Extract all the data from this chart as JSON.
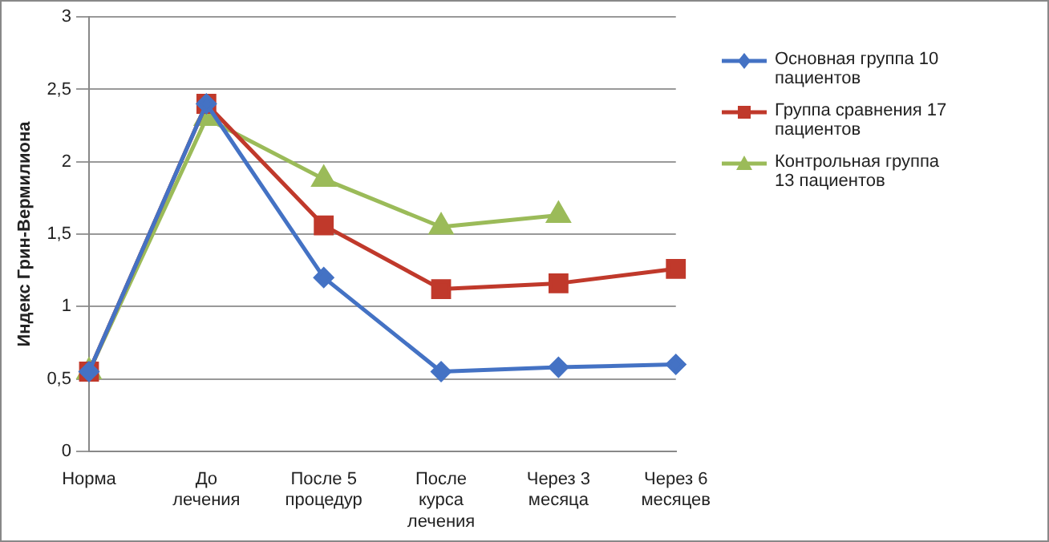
{
  "chart_data": {
    "type": "line",
    "ylabel": "Индекс Грин-Вермилиона",
    "categories": [
      "Норма",
      "До лечения",
      "После 5 процедур",
      "После курса лечения",
      "Через 3 месяца",
      "Через 6 месяцев"
    ],
    "series": [
      {
        "name": "Основная группа 10 пациентов",
        "color": "#4472c4",
        "marker": "diamond",
        "values": [
          0.55,
          2.4,
          1.2,
          0.55,
          0.58,
          0.6
        ]
      },
      {
        "name": "Группа сравнения 17 пациентов",
        "color": "#c0392b",
        "marker": "square",
        "values": [
          0.55,
          2.4,
          1.56,
          1.12,
          1.16,
          1.26
        ]
      },
      {
        "name": "Контрольная группа 13 пациентов",
        "color": "#9bbb59",
        "marker": "triangle",
        "values": [
          0.55,
          2.3,
          1.88,
          1.55,
          1.63,
          null
        ]
      }
    ],
    "ylim": [
      0,
      3
    ],
    "yticks": [
      0,
      {
        "value": 0.5,
        "label": "0,5"
      },
      1,
      {
        "value": 1.5,
        "label": "1,5"
      },
      2,
      {
        "value": 2.5,
        "label": "2,5"
      },
      3
    ],
    "grid": "y",
    "legend": "right"
  }
}
